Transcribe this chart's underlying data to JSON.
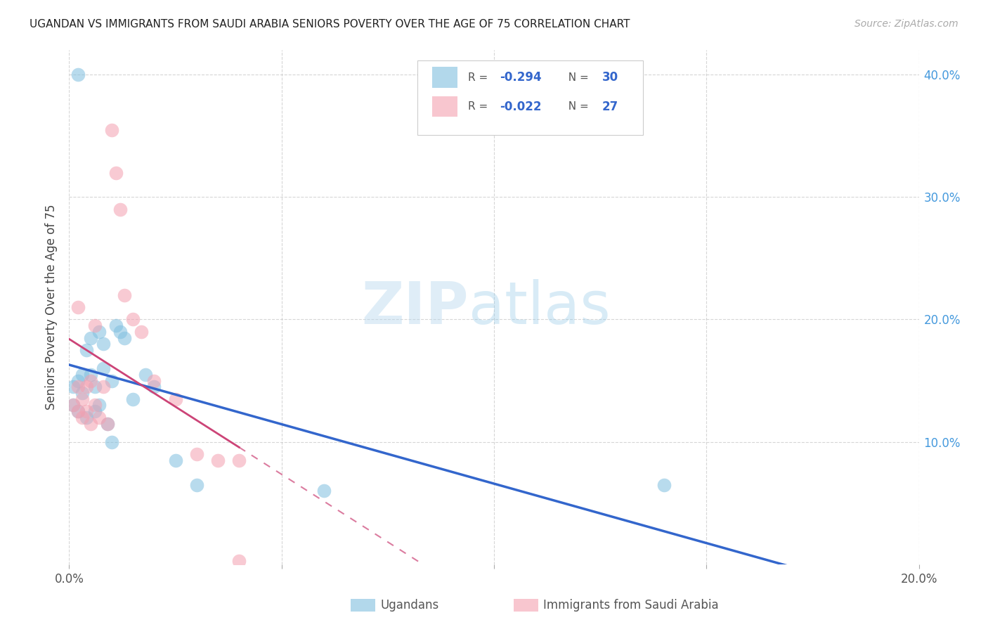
{
  "title": "UGANDAN VS IMMIGRANTS FROM SAUDI ARABIA SENIORS POVERTY OVER THE AGE OF 75 CORRELATION CHART",
  "source": "Source: ZipAtlas.com",
  "ylabel": "Seniors Poverty Over the Age of 75",
  "xlim": [
    0.0,
    0.2
  ],
  "ylim": [
    0.0,
    0.42
  ],
  "xtick_vals": [
    0.0,
    0.05,
    0.1,
    0.15,
    0.2
  ],
  "xtick_labels": [
    "0.0%",
    "",
    "",
    "",
    "20.0%"
  ],
  "ytick_vals": [
    0.1,
    0.2,
    0.3,
    0.4
  ],
  "ytick_labels_right": [
    "10.0%",
    "20.0%",
    "30.0%",
    "40.0%"
  ],
  "legend_r1": "R = -0.294",
  "legend_n1": "N = 30",
  "legend_r2": "R = -0.022",
  "legend_n2": "N = 27",
  "ugandan_color": "#7fbfdf",
  "saudi_color": "#f4a0b0",
  "line_blue": "#3366cc",
  "line_pink": "#cc4477",
  "watermark_color": "#cde8f5",
  "background_color": "#ffffff",
  "grid_color": "#cccccc",
  "ugandan_x": [
    0.001,
    0.001,
    0.002,
    0.002,
    0.003,
    0.003,
    0.004,
    0.004,
    0.005,
    0.005,
    0.006,
    0.006,
    0.007,
    0.007,
    0.008,
    0.008,
    0.009,
    0.01,
    0.01,
    0.011,
    0.012,
    0.013,
    0.015,
    0.018,
    0.02,
    0.025,
    0.03,
    0.06,
    0.14,
    0.002
  ],
  "ugandan_y": [
    0.145,
    0.13,
    0.15,
    0.125,
    0.14,
    0.155,
    0.175,
    0.12,
    0.185,
    0.155,
    0.125,
    0.145,
    0.19,
    0.13,
    0.18,
    0.16,
    0.115,
    0.15,
    0.1,
    0.195,
    0.19,
    0.185,
    0.135,
    0.155,
    0.145,
    0.085,
    0.065,
    0.06,
    0.065,
    0.4
  ],
  "saudi_x": [
    0.001,
    0.002,
    0.002,
    0.003,
    0.003,
    0.004,
    0.004,
    0.005,
    0.005,
    0.006,
    0.006,
    0.007,
    0.008,
    0.009,
    0.01,
    0.011,
    0.012,
    0.013,
    0.015,
    0.017,
    0.02,
    0.025,
    0.03,
    0.035,
    0.04,
    0.04,
    0.002
  ],
  "saudi_y": [
    0.13,
    0.125,
    0.21,
    0.135,
    0.12,
    0.145,
    0.125,
    0.15,
    0.115,
    0.195,
    0.13,
    0.12,
    0.145,
    0.115,
    0.355,
    0.32,
    0.29,
    0.22,
    0.2,
    0.19,
    0.15,
    0.135,
    0.09,
    0.085,
    0.085,
    0.003,
    0.145
  ]
}
